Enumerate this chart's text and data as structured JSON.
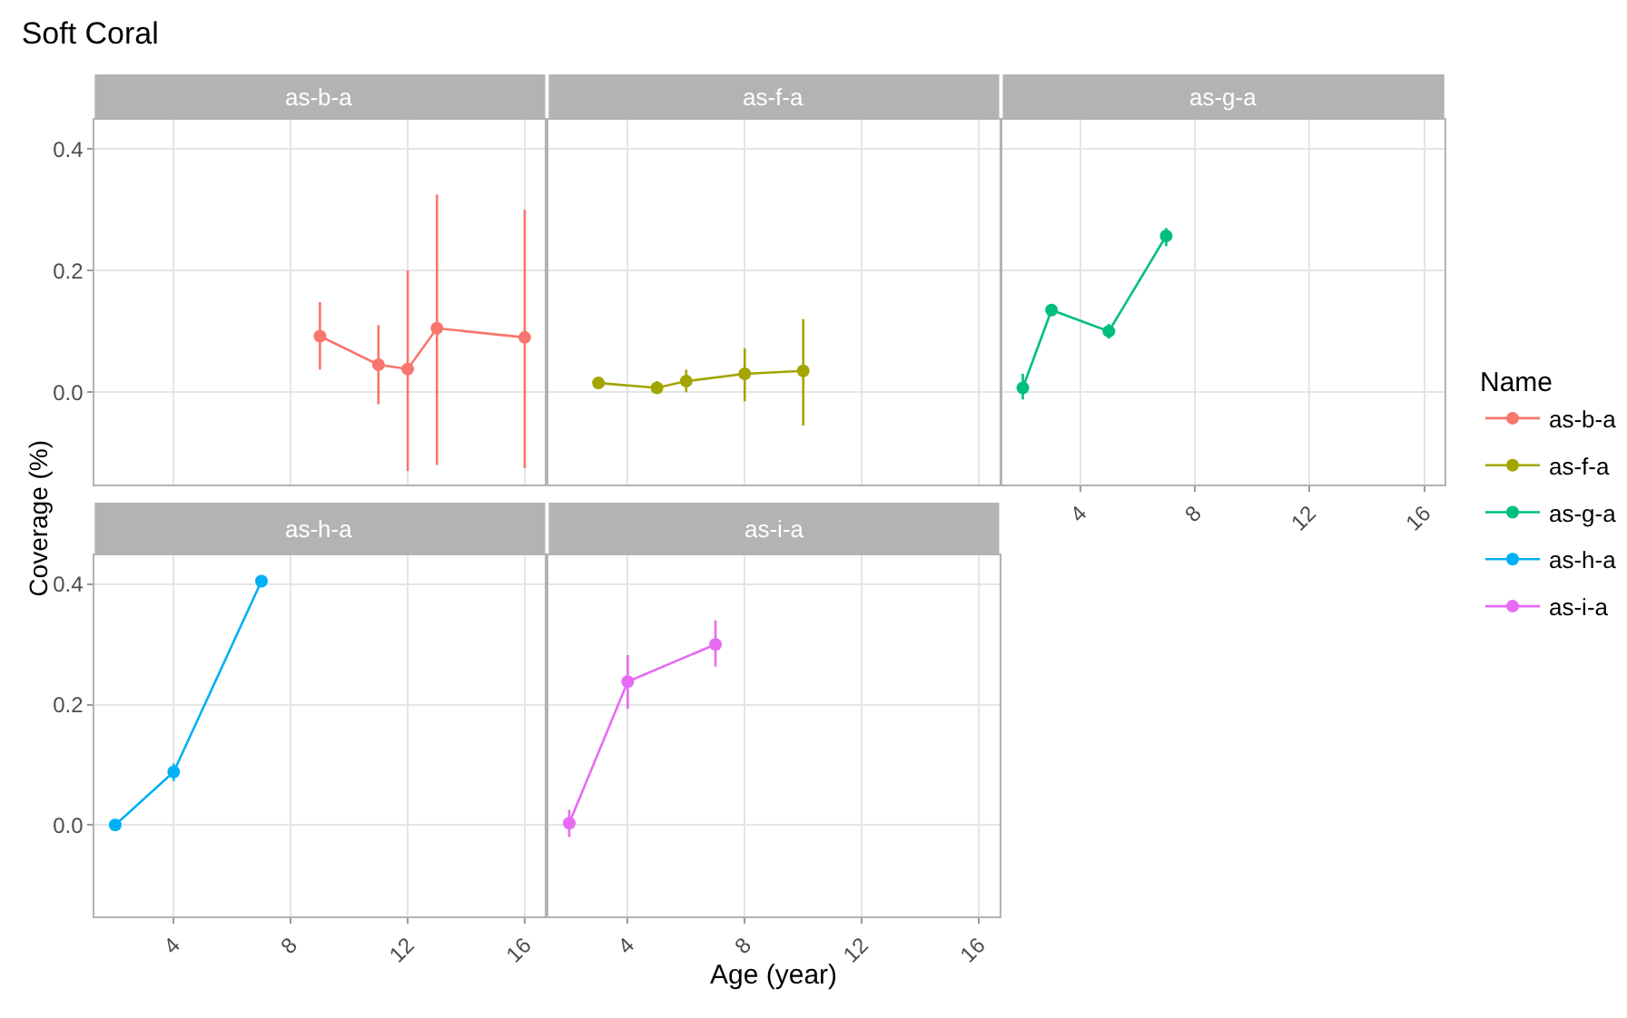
{
  "chart_data": [
    {
      "type": "line",
      "title": "Soft Coral",
      "subtitle": "as-b-a",
      "ylabel": "Coverage (%)",
      "legend_title": "Name",
      "x": [
        9,
        11,
        12,
        13,
        16
      ],
      "series": [
        {
          "name": "as-b-a",
          "color": "#f8766d",
          "values": [
            0.092,
            0.045,
            0.038,
            0.105,
            0.09
          ],
          "errors": [
            [
              0.037,
              0.148
            ],
            [
              -0.02,
              0.11
            ],
            [
              -0.13,
              0.2
            ],
            [
              -0.12,
              0.325
            ],
            [
              -0.125,
              0.3
            ]
          ]
        }
      ],
      "xlim": [
        1.3,
        16.7
      ],
      "xticks": [
        {
          "value": 4,
          "label": null
        },
        {
          "value": 8,
          "label": null
        },
        {
          "value": 12,
          "label": null
        },
        {
          "value": 16,
          "label": null
        }
      ],
      "ylim": [
        -0.152,
        0.448
      ],
      "yticks": [
        {
          "value": 0,
          "label": "0.0"
        },
        {
          "value": 0.2,
          "label": "0.2"
        },
        {
          "value": 0.4,
          "label": "0.4"
        }
      ],
      "grid": true,
      "legend": "right",
      "marker": "circle",
      "line_style": "solid",
      "tick_labels": "y"
    },
    {
      "type": "line",
      "subtitle": "as-f-a",
      "x": [
        3,
        5,
        6,
        8,
        10
      ],
      "series": [
        {
          "name": "as-f-a",
          "color": "#a3a500",
          "values": [
            0.015,
            0.007,
            0.018,
            0.03,
            0.035
          ],
          "errors": [
            [
              0.01,
              0.02
            ],
            [
              0,
              0.018
            ],
            [
              0,
              0.037
            ],
            [
              -0.015,
              0.072
            ],
            [
              -0.055,
              0.12
            ]
          ]
        }
      ],
      "xlim": [
        1.3,
        16.7
      ],
      "xticks": [
        {
          "value": 4,
          "label": null
        },
        {
          "value": 8,
          "label": null
        },
        {
          "value": 12,
          "label": null
        },
        {
          "value": 16,
          "label": null
        }
      ],
      "ylim": [
        -0.152,
        0.448
      ],
      "yticks": [
        {
          "value": 0,
          "label": null
        },
        {
          "value": 0.2,
          "label": null
        },
        {
          "value": 0.4,
          "label": null
        }
      ],
      "grid": true,
      "legend": "right",
      "marker": "circle",
      "line_style": "solid",
      "tick_labels": false
    },
    {
      "type": "line",
      "subtitle": "as-g-a",
      "x": [
        2,
        3,
        5,
        7
      ],
      "series": [
        {
          "name": "as-g-a",
          "color": "#00bf7d",
          "values": [
            0.007,
            0.135,
            0.1,
            0.257
          ],
          "errors": [
            [
              -0.012,
              0.03
            ],
            [
              0.13,
              0.14
            ],
            [
              0.088,
              0.112
            ],
            [
              0.24,
              0.27
            ]
          ]
        }
      ],
      "xlim": [
        1.3,
        16.7
      ],
      "xticks": [
        4,
        8,
        12,
        16
      ],
      "ylim": [
        -0.152,
        0.448
      ],
      "yticks": [
        {
          "value": 0,
          "label": null
        },
        {
          "value": 0.2,
          "label": null
        },
        {
          "value": 0.4,
          "label": null
        }
      ],
      "grid": true,
      "legend": "right",
      "marker": "circle",
      "line_style": "solid",
      "tick_labels": "x"
    },
    {
      "type": "line",
      "subtitle": "as-h-a",
      "x": [
        2,
        4,
        7
      ],
      "series": [
        {
          "name": "as-h-a",
          "color": "#00b0f6",
          "values": [
            0,
            0.088,
            0.405
          ],
          "errors": [
            null,
            [
              0.073,
              0.102
            ],
            [
              0.395,
              0.415
            ]
          ]
        }
      ],
      "xlim": [
        1.3,
        16.7
      ],
      "xticks": [
        4,
        8,
        12,
        16
      ],
      "ylim": [
        -0.152,
        0.448
      ],
      "yticks": [
        {
          "value": 0,
          "label": "0.0"
        },
        {
          "value": 0.2,
          "label": "0.2"
        },
        {
          "value": 0.4,
          "label": "0.4"
        }
      ],
      "grid": true,
      "legend": "right",
      "marker": "circle",
      "line_style": "solid"
    },
    {
      "type": "line",
      "subtitle": "as-i-a",
      "xlabel": "Age (year)",
      "x": [
        2,
        4,
        7
      ],
      "series": [
        {
          "name": "as-i-a",
          "color": "#e76bf3",
          "values": [
            0.003,
            0.238,
            0.3
          ],
          "errors": [
            [
              -0.02,
              0.025
            ],
            [
              0.193,
              0.282
            ],
            [
              0.263,
              0.34
            ]
          ]
        }
      ],
      "xlim": [
        1.3,
        16.7
      ],
      "xticks": [
        4,
        8,
        12,
        16
      ],
      "ylim": [
        -0.152,
        0.448
      ],
      "yticks": [
        {
          "value": 0,
          "label": null
        },
        {
          "value": 0.2,
          "label": null
        },
        {
          "value": 0.4,
          "label": null
        }
      ],
      "grid": true,
      "legend": "right",
      "marker": "circle",
      "line_style": "solid",
      "tick_labels": "x"
    }
  ]
}
